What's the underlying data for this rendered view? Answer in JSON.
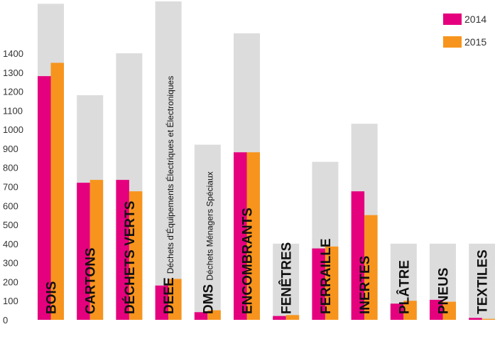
{
  "chart_data": {
    "type": "bar",
    "categories": [
      {
        "label": "BOIS",
        "sub": ""
      },
      {
        "label": "CARTONS",
        "sub": ""
      },
      {
        "label": "DÉCHETS VERTS",
        "sub": ""
      },
      {
        "label": "DEEE",
        "sub": "Déchets d'Équipements Électriques et Électroniques"
      },
      {
        "label": "DMS",
        "sub": "Déchets Ménagers Spéciaux"
      },
      {
        "label": "ENCOMBRANTS",
        "sub": ""
      },
      {
        "label": "FENÊTRES",
        "sub": ""
      },
      {
        "label": "FERRAILLE",
        "sub": ""
      },
      {
        "label": "INERTES",
        "sub": ""
      },
      {
        "label": "PLÂTRE",
        "sub": ""
      },
      {
        "label": "PNEUS",
        "sub": ""
      },
      {
        "label": "TEXTILES",
        "sub": ""
      }
    ],
    "series": [
      {
        "name": "2014",
        "color": "#e5007e",
        "values": [
          1280,
          720,
          735,
          180,
          40,
          880,
          20,
          375,
          675,
          85,
          105,
          10
        ]
      },
      {
        "name": "2015",
        "color": "#f7941d",
        "values": [
          1350,
          735,
          675,
          215,
          50,
          880,
          25,
          385,
          550,
          100,
          95,
          5
        ]
      }
    ],
    "ylim": [
      0,
      1400
    ],
    "yticks": [
      "0",
      "100",
      "200",
      "300",
      "400",
      "500",
      "600",
      "700",
      "800",
      "900",
      "1000",
      "1100",
      "1200",
      "1300",
      "1400"
    ],
    "yticks_values": [
      0,
      100,
      200,
      300,
      400,
      500,
      600,
      700,
      800,
      900,
      1000,
      1100,
      1200,
      1300,
      1400
    ],
    "background_tops": [
      1660,
      1180,
      1400,
      1715,
      920,
      1505,
      400,
      830,
      1030,
      400,
      400,
      400
    ],
    "background_color": "#dcdcdc",
    "legend_position": "top-right",
    "grid": false
  }
}
